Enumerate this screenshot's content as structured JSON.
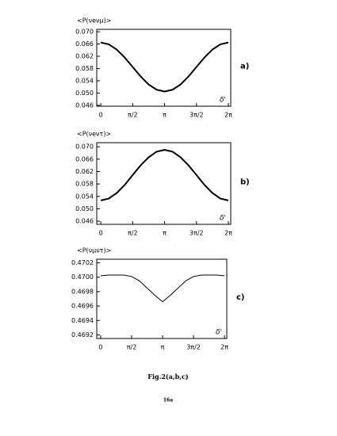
{
  "chart_data": [
    {
      "type": "line",
      "ylabel": "<P(νeνμ)>",
      "panel_label": "a)",
      "xlabel": "δ'",
      "x": [
        0,
        0.393,
        0.785,
        1.178,
        1.571,
        1.963,
        2.356,
        2.749,
        3.142,
        3.534,
        3.927,
        4.32,
        4.712,
        5.105,
        5.498,
        5.89,
        6.283
      ],
      "series": [
        {
          "color": "#000000",
          "values": [
            0.0665,
            0.0659,
            0.0642,
            0.0616,
            0.0585,
            0.0554,
            0.0528,
            0.0511,
            0.0505,
            0.0511,
            0.0528,
            0.0554,
            0.0585,
            0.0616,
            0.0642,
            0.0659,
            0.0665
          ]
        }
      ],
      "xlim": [
        -0.2,
        6.4
      ],
      "ylim": [
        0.0457,
        0.0708
      ],
      "xticks": [
        0,
        {
          "value": 1.5708,
          "label": "π/2"
        },
        {
          "value": 3.1416,
          "label": "π"
        },
        {
          "value": 4.7124,
          "label": "3π/2"
        },
        {
          "value": 6.2832,
          "label": "2π"
        }
      ],
      "yticks": [
        {
          "value": 0.046,
          "label": "0.046"
        },
        {
          "value": 0.05,
          "label": "0.050"
        },
        0.054,
        0.058,
        0.062,
        0.066,
        {
          "value": 0.07,
          "label": "0.070"
        }
      ]
    },
    {
      "type": "line",
      "ylabel": "<P(νeντ)>",
      "panel_label": "b)",
      "xlabel": "δ'",
      "x": [
        0,
        0.393,
        0.785,
        1.178,
        1.571,
        1.963,
        2.356,
        2.749,
        3.142,
        3.534,
        3.927,
        4.32,
        4.712,
        5.105,
        5.498,
        5.89,
        6.283
      ],
      "series": [
        {
          "color": "#000000",
          "values": [
            0.0527,
            0.0533,
            0.0551,
            0.0577,
            0.0609,
            0.064,
            0.0666,
            0.0684,
            0.069,
            0.0684,
            0.0666,
            0.064,
            0.0609,
            0.0577,
            0.0551,
            0.0533,
            0.0527
          ]
        }
      ],
      "xlim": [
        -0.2,
        6.4
      ],
      "ylim": [
        0.045,
        0.0713
      ],
      "xticks": [
        0,
        {
          "value": 1.5708,
          "label": "π/2"
        },
        {
          "value": 3.1416,
          "label": "π"
        },
        {
          "value": 4.7124,
          "label": "3π/2"
        },
        {
          "value": 6.2832,
          "label": "2π"
        }
      ],
      "yticks": [
        {
          "value": 0.046,
          "label": "0.046"
        },
        {
          "value": 0.05,
          "label": "0.050"
        },
        0.054,
        0.058,
        0.062,
        0.066,
        {
          "value": 0.07,
          "label": "0.070"
        }
      ]
    },
    {
      "type": "line",
      "ylabel": "<P(νμντ)>",
      "panel_label": "c)",
      "xlabel": "δ'",
      "x": [
        0,
        0.393,
        0.785,
        1.178,
        1.571,
        1.963,
        2.356,
        2.749,
        3.142,
        3.534,
        3.927,
        4.32,
        4.712,
        5.105,
        5.498,
        5.89,
        6.283
      ],
      "series": [
        {
          "color": "#000000",
          "values": [
            0.47002,
            0.47003,
            0.47003,
            0.47003,
            0.47001,
            0.46995,
            0.46985,
            0.46975,
            0.46966,
            0.46975,
            0.46985,
            0.46995,
            0.47001,
            0.47003,
            0.47003,
            0.47003,
            0.47002
          ]
        }
      ],
      "xlim": [
        -0.2,
        6.4
      ],
      "ylim": [
        0.46915,
        0.47025
      ],
      "xticks": [
        0,
        {
          "value": 1.5708,
          "label": "π/2"
        },
        {
          "value": 3.1416,
          "label": "π"
        },
        {
          "value": 4.7124,
          "label": "3π/2"
        },
        {
          "value": 6.2832,
          "label": "2π"
        }
      ],
      "yticks": [
        0.4692,
        0.4694,
        0.4696,
        0.4698,
        {
          "value": 0.47,
          "label": "0.4700"
        },
        0.4702
      ]
    }
  ],
  "caption": "Fig.2(a,b,c)",
  "page_number": "16a"
}
